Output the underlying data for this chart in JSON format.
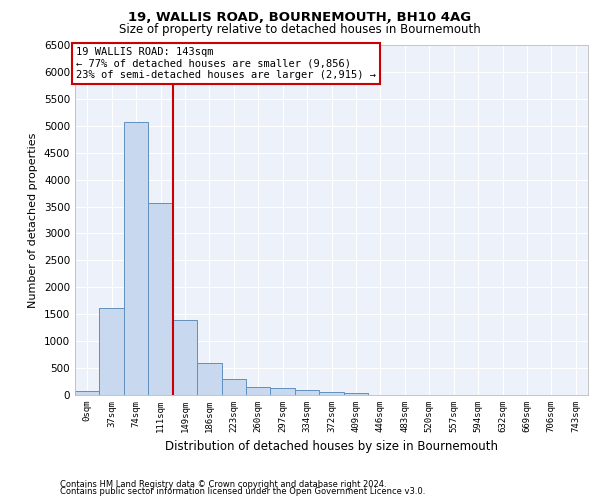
{
  "title1": "19, WALLIS ROAD, BOURNEMOUTH, BH10 4AG",
  "title2": "Size of property relative to detached houses in Bournemouth",
  "xlabel": "Distribution of detached houses by size in Bournemouth",
  "ylabel": "Number of detached properties",
  "footnote1": "Contains HM Land Registry data © Crown copyright and database right 2024.",
  "footnote2": "Contains public sector information licensed under the Open Government Licence v3.0.",
  "annotation_line1": "19 WALLIS ROAD: 143sqm",
  "annotation_line2": "← 77% of detached houses are smaller (9,856)",
  "annotation_line3": "23% of semi-detached houses are larger (2,915) →",
  "bar_labels": [
    "0sqm",
    "37sqm",
    "74sqm",
    "111sqm",
    "149sqm",
    "186sqm",
    "223sqm",
    "260sqm",
    "297sqm",
    "334sqm",
    "372sqm",
    "409sqm",
    "446sqm",
    "483sqm",
    "520sqm",
    "557sqm",
    "594sqm",
    "632sqm",
    "669sqm",
    "706sqm",
    "743sqm"
  ],
  "bar_values": [
    75,
    1625,
    5075,
    3575,
    1400,
    600,
    300,
    150,
    125,
    90,
    50,
    30,
    5,
    5,
    2,
    1,
    0,
    0,
    0,
    0,
    0
  ],
  "bar_color": "#c8d8ee",
  "bar_edge_color": "#6090c0",
  "vline_x": 3.5,
  "vline_color": "#cc0000",
  "ylim": [
    0,
    6500
  ],
  "yticks": [
    0,
    500,
    1000,
    1500,
    2000,
    2500,
    3000,
    3500,
    4000,
    4500,
    5000,
    5500,
    6000,
    6500
  ],
  "bg_color": "#edf2fa",
  "grid_color": "#ffffff",
  "annotation_box_color": "#cc0000",
  "figwidth": 6.0,
  "figheight": 5.0,
  "dpi": 100
}
